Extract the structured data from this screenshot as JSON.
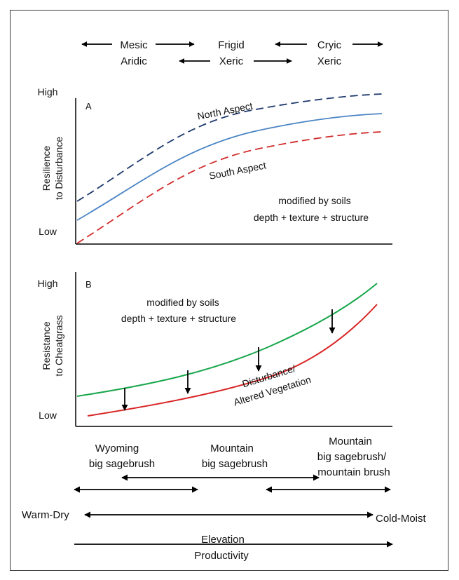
{
  "top_regimes": {
    "temperature_left": "Mesic",
    "moisture_left": "Aridic",
    "temperature_mid": "Frigid",
    "moisture_mid": "Xeric",
    "temperature_right": "Cryic",
    "moisture_right": "Xeric"
  },
  "panel_a": {
    "letter": "A",
    "y_high": "High",
    "y_low": "Low",
    "ylabel_line1": "Resilience",
    "ylabel_line2": "to Disturbance",
    "north_label": "North Aspect",
    "south_label": "South Aspect",
    "note_line1": "modified by soils",
    "note_line2": "depth + texture + structure",
    "colors": {
      "north": "#1f3a6e",
      "middle": "#4a84c4",
      "south": "#d12b2b"
    }
  },
  "panel_b": {
    "letter": "B",
    "y_high": "High",
    "y_low": "Low",
    "ylabel_line1": "Resistance",
    "ylabel_line2": "to Cheatgrass",
    "note_line1": "modified by soils",
    "note_line2": "depth + texture + structure",
    "disturbance_line1": "Disturbance/",
    "disturbance_line2": "Altered Vegetation",
    "colors": {
      "upper": "#18a64b",
      "lower": "#d92626"
    }
  },
  "vegetation": {
    "wyoming_line1": "Wyoming",
    "wyoming_line2": "big sagebrush",
    "mountain_line1": "Mountain",
    "mountain_line2": "big sagebrush",
    "mtn_brush_line1": "Mountain",
    "mtn_brush_line2": "big sagebrush/",
    "mtn_brush_line3": "mountain brush"
  },
  "gradient": {
    "left": "Warm-Dry",
    "right": "Cold-Moist",
    "elevation": "Elevation",
    "productivity": "Productivity"
  }
}
